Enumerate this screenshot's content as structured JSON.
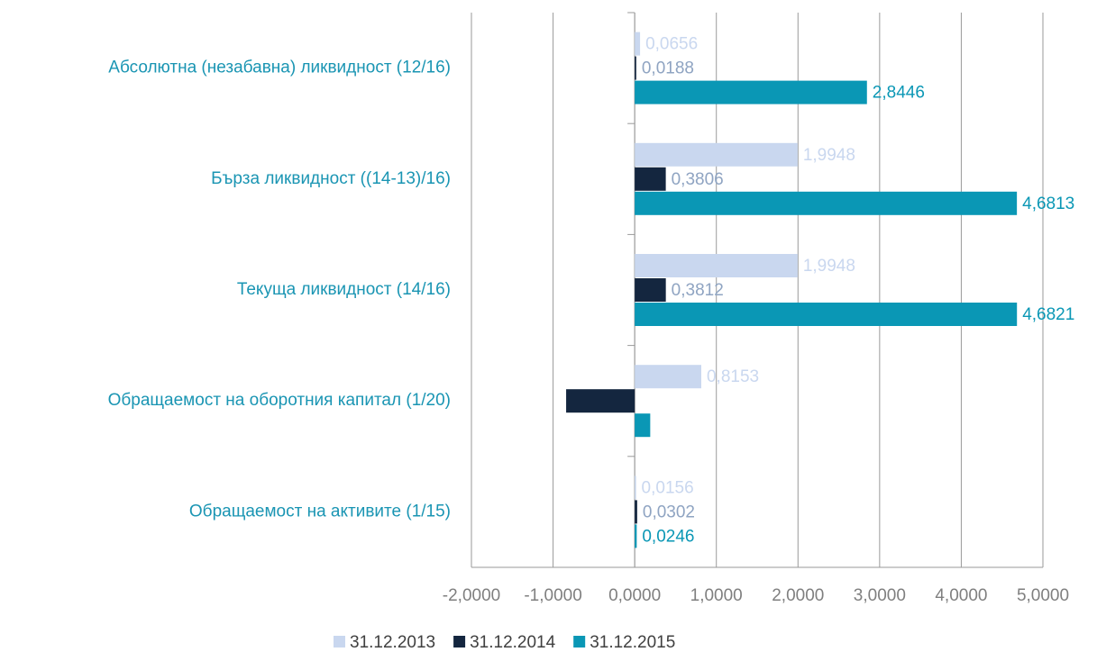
{
  "chart_data": {
    "type": "hbar",
    "categories": [
      "Абсолютна (незабавна) ликвидност (12/16)",
      "Бърза ликвидност ((14-13)/16)",
      "Текуща ликвидност (14/16)",
      "Обращаемост на оборотния капитал (1/20)",
      "Обращаемост на активите (1/15)"
    ],
    "series": [
      {
        "name": "31.12.2013",
        "color": "#c9d7ef",
        "label_color": "#c9d7ef",
        "values": [
          0.0656,
          1.9948,
          1.9948,
          0.8153,
          0.0156
        ],
        "value_labels": [
          "0,0656",
          "1,9948",
          "1,9948",
          "0,8153",
          "0,0156"
        ]
      },
      {
        "name": "31.12.2014",
        "color": "#14263f",
        "label_color": "#8fa4c2",
        "values": [
          0.0188,
          0.3806,
          0.3812,
          -0.84,
          0.0302
        ],
        "value_labels": [
          "0,0188",
          "0,3806",
          "0,3812",
          null,
          "0,0302"
        ]
      },
      {
        "name": "31.12.2015",
        "color": "#0a97b5",
        "label_color": "#0a97b5",
        "values": [
          2.8446,
          4.6813,
          4.6821,
          0.19,
          0.0246
        ],
        "value_labels": [
          "2,8446",
          "4,6813",
          "4,6821",
          null,
          "0,0246"
        ]
      }
    ],
    "xlim": [
      -2,
      5
    ],
    "xticks": [
      {
        "value": -2,
        "label": "-2,0000"
      },
      {
        "value": -1,
        "label": "-1,0000"
      },
      {
        "value": 0,
        "label": "0,0000"
      },
      {
        "value": 1,
        "label": "1,0000"
      },
      {
        "value": 2,
        "label": "2,0000"
      },
      {
        "value": 3,
        "label": "3,0000"
      },
      {
        "value": 4,
        "label": "4,0000"
      },
      {
        "value": 5,
        "label": "5,0000"
      }
    ],
    "grid": true
  }
}
